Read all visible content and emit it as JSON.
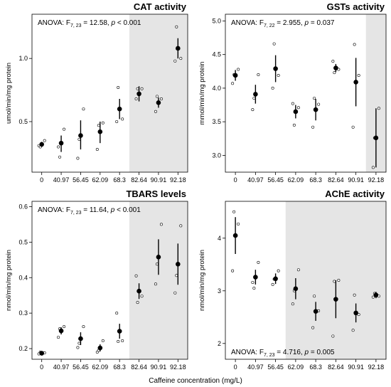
{
  "x_label": "Caffeine concentration (mg/L)",
  "chart_data": [
    {
      "type": "scatter",
      "title": "CAT activity",
      "ylabel": "umol/min/mg protein",
      "categories": [
        "0",
        "40.97",
        "56.45",
        "62.09",
        "68.3",
        "82.64",
        "90.91",
        "92.18"
      ],
      "ylim": [
        0.1,
        1.35
      ],
      "yticks": [
        "0.5",
        "1.0"
      ],
      "ytick_values": [
        0.5,
        1.0
      ],
      "shade_from_index": 5,
      "anova": {
        "prefix": "ANOVA: F",
        "df": "7, 23",
        "mid": " = 12.58, ",
        "p": "p",
        "suffix": " < 0.001"
      },
      "anova_position": "top-left",
      "means": [
        0.32,
        0.33,
        0.39,
        0.42,
        0.6,
        0.72,
        0.65,
        1.08
      ],
      "errors": [
        [
          0.3,
          0.34
        ],
        [
          0.26,
          0.39
        ],
        [
          0.28,
          0.51
        ],
        [
          0.33,
          0.5
        ],
        [
          0.52,
          0.68
        ],
        [
          0.66,
          0.78
        ],
        [
          0.61,
          0.69
        ],
        [
          1.0,
          1.16
        ]
      ],
      "points": [
        [
          0.31,
          0.35,
          0.3
        ],
        [
          0.3,
          0.44,
          0.22
        ],
        [
          0.21,
          0.6,
          0.36
        ],
        [
          0.28,
          0.49,
          0.47
        ],
        [
          0.5,
          0.52,
          0.77
        ],
        [
          0.68,
          0.76,
          0.76
        ],
        [
          0.58,
          0.68,
          0.7
        ],
        [
          0.98,
          1.0,
          1.25
        ]
      ]
    },
    {
      "type": "scatter",
      "title": "GSTs activity",
      "ylabel": "mmol/min/mg protein",
      "categories": [
        "0",
        "40.97",
        "56.45",
        "62.09",
        "68.3",
        "82.64",
        "90.91",
        "92.18"
      ],
      "ylim": [
        2.75,
        5.1
      ],
      "yticks": [
        "3.0",
        "3.5",
        "4.0",
        "4.5",
        "5.0"
      ],
      "ytick_values": [
        3.0,
        3.5,
        4.0,
        4.5,
        5.0
      ],
      "shade_from_index": 7,
      "anova": {
        "prefix": "ANOVA: F",
        "df": "7, 22",
        "mid": " = 2.955, ",
        "p": "p",
        "suffix": " = 0.037"
      },
      "anova_position": "top-left",
      "means": [
        4.19,
        3.91,
        4.29,
        3.65,
        3.68,
        4.3,
        4.09,
        3.26
      ],
      "errors": [
        [
          4.11,
          4.27
        ],
        [
          3.77,
          4.05
        ],
        [
          4.09,
          4.49
        ],
        [
          3.55,
          3.75
        ],
        [
          3.52,
          3.84
        ],
        [
          4.24,
          4.36
        ],
        [
          3.73,
          4.45
        ],
        [
          2.82,
          3.7
        ]
      ],
      "points": [
        [
          4.07,
          4.28,
          4.2
        ],
        [
          3.68,
          4.2,
          3.85
        ],
        [
          4.0,
          4.19,
          4.66
        ],
        [
          3.77,
          3.71,
          3.45
        ],
        [
          3.42,
          3.76,
          3.85
        ],
        [
          4.4,
          4.28,
          4.23
        ],
        [
          3.42,
          4.19,
          4.65
        ],
        [
          2.82,
          3.7,
          3.26
        ]
      ]
    },
    {
      "type": "scatter",
      "title": "TBARS levels",
      "ylabel": "nmol/min/mg protein",
      "categories": [
        "0",
        "40.97",
        "56.45",
        "62.09",
        "68.3",
        "82.64",
        "90.91",
        "92.18"
      ],
      "ylim": [
        0.17,
        0.615
      ],
      "yticks": [
        "0.2",
        "0.3",
        "0.4",
        "0.5",
        "0.6"
      ],
      "ytick_values": [
        0.2,
        0.3,
        0.4,
        0.5,
        0.6
      ],
      "shade_from_index": 5,
      "anova": {
        "prefix": "ANOVA: F",
        "df": "7, 23",
        "mid": " = 11.64, ",
        "p": "p",
        "suffix": " < 0.001"
      },
      "anova_position": "top-left",
      "means": [
        0.187,
        0.25,
        0.228,
        0.202,
        0.249,
        0.362,
        0.458,
        0.438
      ],
      "errors": [
        [
          0.184,
          0.19
        ],
        [
          0.24,
          0.26
        ],
        [
          0.21,
          0.246
        ],
        [
          0.192,
          0.212
        ],
        [
          0.228,
          0.27
        ],
        [
          0.34,
          0.384
        ],
        [
          0.408,
          0.508
        ],
        [
          0.38,
          0.496
        ]
      ],
      "points": [
        [
          0.185,
          0.188,
          0.19
        ],
        [
          0.232,
          0.262,
          0.256
        ],
        [
          0.203,
          0.262,
          0.215
        ],
        [
          0.19,
          0.222,
          0.195
        ],
        [
          0.3,
          0.222,
          0.22
        ],
        [
          0.405,
          0.348,
          0.33
        ],
        [
          0.382,
          0.55,
          0.438
        ],
        [
          0.357,
          0.546,
          0.406
        ]
      ]
    },
    {
      "type": "scatter",
      "title": "AChE activity",
      "ylabel": "nmol/min/mg protein",
      "categories": [
        "0",
        "40.97",
        "56.45",
        "62.09",
        "68.3",
        "82.64",
        "90.91",
        "92.18"
      ],
      "ylim": [
        1.7,
        4.7
      ],
      "yticks": [
        "2",
        "3",
        "4"
      ],
      "ytick_values": [
        2,
        3,
        4
      ],
      "shade_from_index": 3,
      "anova": {
        "prefix": "ANOVA: F",
        "df": "7, 23",
        "mid": " = 4.716, ",
        "p": "p",
        "suffix": " = 0.005"
      },
      "anova_position": "bottom-left",
      "means": [
        4.05,
        3.26,
        3.23,
        3.04,
        2.61,
        2.84,
        2.58,
        2.92
      ],
      "errors": [
        [
          3.7,
          4.4
        ],
        [
          3.12,
          3.4
        ],
        [
          3.13,
          3.33
        ],
        [
          2.84,
          3.24
        ],
        [
          2.43,
          2.79
        ],
        [
          2.48,
          3.2
        ],
        [
          2.4,
          2.76
        ],
        [
          2.86,
          2.98
        ]
      ],
      "points": [
        [
          3.38,
          4.27,
          4.5
        ],
        [
          3.16,
          3.54,
          3.05
        ],
        [
          3.12,
          3.38,
          3.22
        ],
        [
          2.75,
          3.4,
          3.0
        ],
        [
          2.3,
          2.62,
          2.9
        ],
        [
          2.14,
          3.2,
          3.18
        ],
        [
          2.25,
          2.55,
          2.92
        ],
        [
          2.88,
          2.9,
          2.95
        ]
      ]
    }
  ]
}
